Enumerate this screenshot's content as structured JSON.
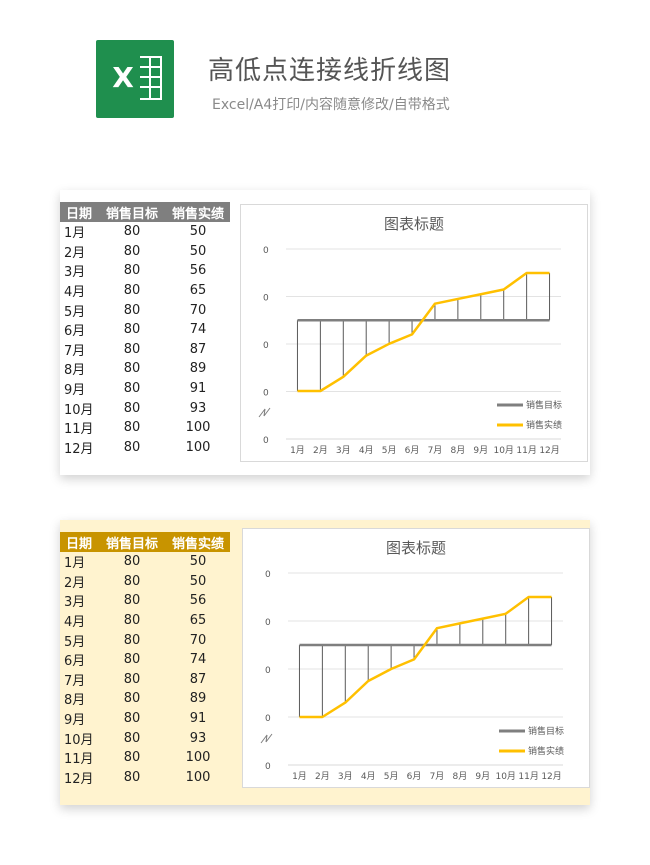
{
  "header": {
    "title": "高低点连接线折线图",
    "subtitle": "Excel/A4打印/内容随意修改/自带格式",
    "logo_letter": "X"
  },
  "table": {
    "headers": [
      "日期",
      "销售目标",
      "销售实绩"
    ],
    "rows": [
      [
        "1月",
        "80",
        "50"
      ],
      [
        "2月",
        "80",
        "50"
      ],
      [
        "3月",
        "80",
        "56"
      ],
      [
        "4月",
        "80",
        "65"
      ],
      [
        "5月",
        "80",
        "70"
      ],
      [
        "6月",
        "80",
        "74"
      ],
      [
        "7月",
        "80",
        "87"
      ],
      [
        "8月",
        "80",
        "89"
      ],
      [
        "9月",
        "80",
        "91"
      ],
      [
        "10月",
        "80",
        "93"
      ],
      [
        "11月",
        "80",
        "100"
      ],
      [
        "12月",
        "80",
        "100"
      ]
    ]
  },
  "chart_data": [
    {
      "type": "line",
      "title": "图表标题",
      "categories": [
        "1月",
        "2月",
        "3月",
        "4月",
        "5月",
        "6月",
        "7月",
        "8月",
        "9月",
        "10月",
        "11月",
        "12月"
      ],
      "series": [
        {
          "name": "销售目标",
          "values": [
            80,
            80,
            80,
            80,
            80,
            80,
            80,
            80,
            80,
            80,
            80,
            80
          ],
          "color": "#7f7f7f"
        },
        {
          "name": "销售实绩",
          "values": [
            50,
            50,
            56,
            65,
            70,
            74,
            87,
            89,
            91,
            93,
            100,
            100
          ],
          "color": "#ffc000"
        }
      ],
      "ytick_labels": [
        "0",
        "0",
        "0",
        "0",
        "0"
      ],
      "ylim": [
        50,
        100
      ],
      "legend": "bottom-right",
      "high_low_lines": true
    },
    {
      "type": "line",
      "title": "图表标题",
      "categories": [
        "1月",
        "2月",
        "3月",
        "4月",
        "5月",
        "6月",
        "7月",
        "8月",
        "9月",
        "10月",
        "11月",
        "12月"
      ],
      "series": [
        {
          "name": "销售目标",
          "values": [
            80,
            80,
            80,
            80,
            80,
            80,
            80,
            80,
            80,
            80,
            80,
            80
          ],
          "color": "#7f7f7f"
        },
        {
          "name": "销售实绩",
          "values": [
            50,
            50,
            56,
            65,
            70,
            74,
            87,
            89,
            91,
            93,
            100,
            100
          ],
          "color": "#ffc000"
        }
      ],
      "ytick_labels": [
        "0",
        "0",
        "0",
        "0",
        "0"
      ],
      "ylim": [
        50,
        100
      ],
      "legend": "bottom-right",
      "high_low_lines": true
    }
  ]
}
